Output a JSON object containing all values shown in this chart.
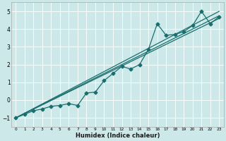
{
  "xlabel": "Humidex (Indice chaleur)",
  "bg_color": "#cce8e8",
  "grid_color": "#ffffff",
  "line_color": "#1a6e6e",
  "xlim": [
    -0.5,
    23.5
  ],
  "ylim": [
    -1.5,
    5.5
  ],
  "xticks": [
    0,
    1,
    2,
    3,
    4,
    5,
    6,
    7,
    8,
    9,
    10,
    11,
    12,
    13,
    14,
    15,
    16,
    17,
    18,
    19,
    20,
    21,
    22,
    23
  ],
  "yticks": [
    -1,
    0,
    1,
    2,
    3,
    4,
    5
  ],
  "series1_x": [
    0,
    1,
    2,
    3,
    4,
    5,
    6,
    7,
    8,
    9,
    10,
    11,
    12,
    13,
    14,
    15,
    16,
    17,
    18,
    19,
    20,
    21,
    22,
    23
  ],
  "series1_y": [
    -1.0,
    -0.8,
    -0.6,
    -0.5,
    -0.35,
    -0.3,
    -0.2,
    -0.3,
    0.4,
    0.45,
    1.1,
    1.5,
    1.9,
    1.75,
    2.0,
    2.85,
    4.3,
    3.65,
    3.7,
    3.85,
    4.2,
    5.0,
    4.3,
    4.7
  ],
  "line2_x": [
    0,
    23
  ],
  "line2_y": [
    -1.0,
    4.75
  ],
  "line3_x": [
    0,
    23
  ],
  "line3_y": [
    -1.0,
    4.6
  ],
  "line4_x": [
    0,
    23
  ],
  "line4_y": [
    -1.0,
    5.0
  ]
}
